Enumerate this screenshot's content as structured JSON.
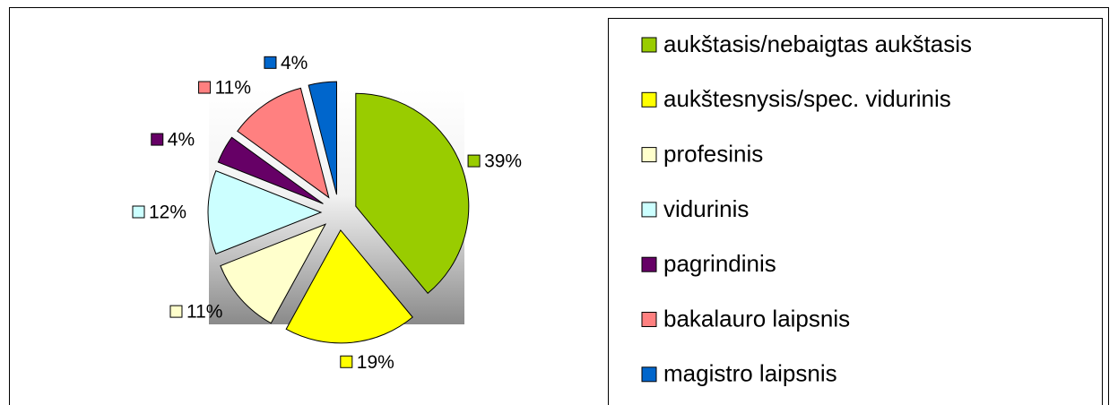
{
  "chart_data": {
    "type": "pie",
    "categories": [
      "aukštasis/nebaigtas aukštasis",
      "aukštesnysis/spec. vidurinis",
      "profesinis",
      "vidurinis",
      "pagrindinis",
      "bakalauro laipsnis",
      "magistro laipsnis"
    ],
    "values": [
      39,
      19,
      11,
      12,
      4,
      11,
      4
    ],
    "value_labels": [
      "39%",
      "19%",
      "11%",
      "12%",
      "4%",
      "11%",
      "4%"
    ],
    "colors": [
      "#99cc00",
      "#ffff00",
      "#ffffcc",
      "#ccffff",
      "#660066",
      "#ff8080",
      "#0066cc"
    ]
  }
}
